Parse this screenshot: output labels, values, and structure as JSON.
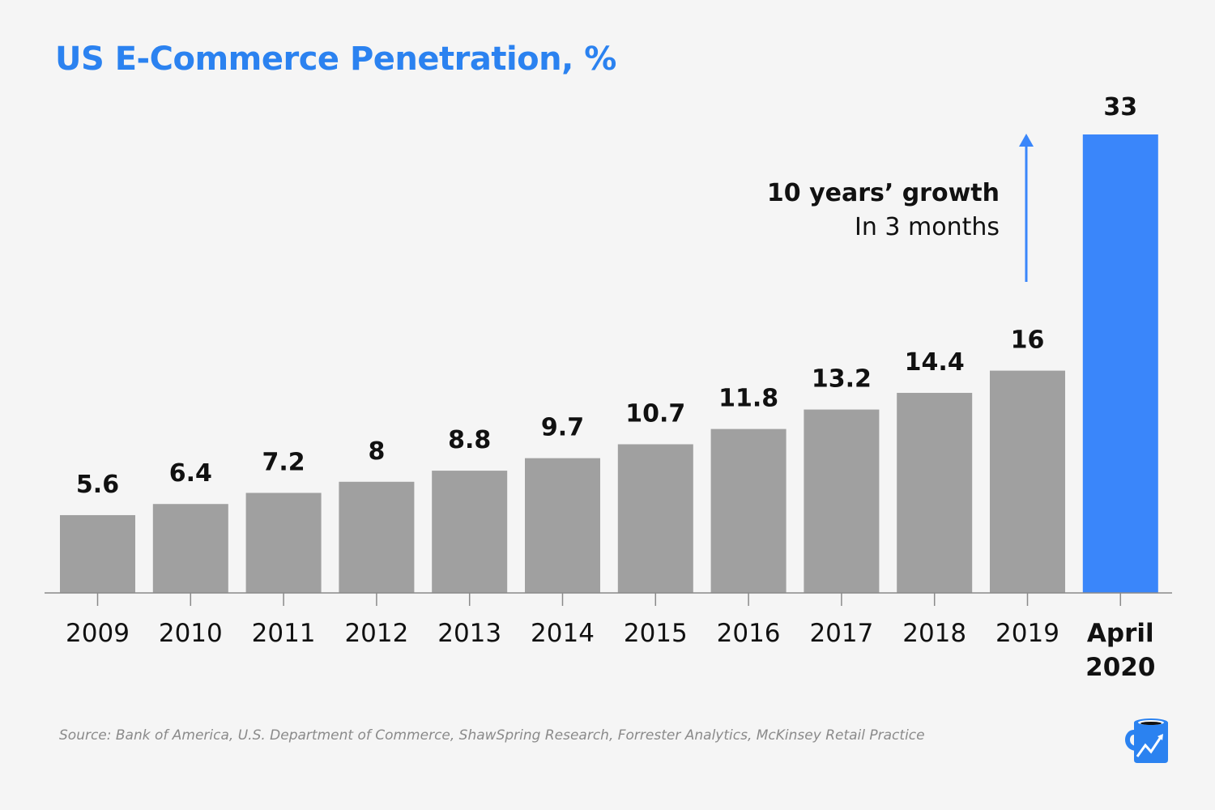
{
  "chart_data": {
    "type": "bar",
    "title": "US E-Commerce Penetration, %",
    "categories": [
      "2009",
      "2010",
      "2011",
      "2012",
      "2013",
      "2014",
      "2015",
      "2016",
      "2017",
      "2018",
      "2019",
      "April 2020"
    ],
    "values": [
      5.6,
      6.4,
      7.2,
      8,
      8.8,
      9.7,
      10.7,
      11.8,
      13.2,
      14.4,
      16,
      33
    ],
    "value_labels": [
      "5.6",
      "6.4",
      "7.2",
      "8",
      "8.8",
      "9.7",
      "10.7",
      "11.8",
      "13.2",
      "14.4",
      "16",
      "33"
    ],
    "highlight_index": 11,
    "colors": {
      "default": "#a0a0a0",
      "highlight": "#3a86fa",
      "title": "#2b82f0",
      "arrow": "#3a86fa"
    },
    "xlabel": "",
    "ylabel": "",
    "ylim": [
      0,
      33
    ],
    "grid": false,
    "legend": "none",
    "annotation": {
      "line1": "10 years’ growth",
      "line2": "In 3 months"
    },
    "source": "Source: Bank of America, U.S. Department of Commerce, ShawSpring Research, Forrester Analytics, McKinsey Retail Practice"
  },
  "logo": {
    "icon": "mug-chart-icon"
  }
}
